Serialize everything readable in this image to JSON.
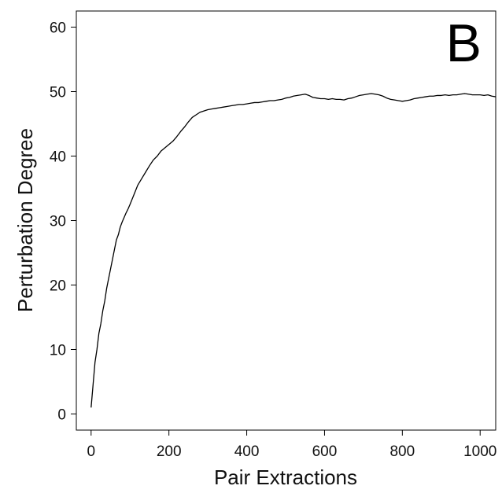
{
  "chart_data": {
    "type": "line",
    "panel_label": "B",
    "xlabel": "Pair Extractions",
    "ylabel": "Perturbation Degree",
    "xlim": [
      -38,
      1040
    ],
    "ylim": [
      -2.5,
      62.5
    ],
    "x_ticks": [
      0,
      200,
      400,
      600,
      800,
      1000
    ],
    "y_ticks": [
      0,
      10,
      20,
      30,
      40,
      50,
      60
    ],
    "grid": false,
    "legend": "none",
    "line_color": "#000000",
    "series": [
      {
        "x": [
          0,
          5,
          10,
          15,
          20,
          25,
          30,
          35,
          40,
          45,
          50,
          55,
          60,
          65,
          70,
          75,
          80,
          85,
          90,
          95,
          100,
          110,
          120,
          130,
          140,
          150,
          160,
          170,
          180,
          190,
          200,
          210,
          220,
          230,
          240,
          250,
          260,
          270,
          280,
          290,
          300,
          310,
          320,
          330,
          340,
          350,
          360,
          370,
          380,
          390,
          400,
          410,
          420,
          430,
          440,
          450,
          460,
          470,
          480,
          490,
          500,
          510,
          520,
          530,
          540,
          550,
          560,
          570,
          580,
          590,
          600,
          610,
          620,
          630,
          640,
          650,
          660,
          670,
          680,
          690,
          700,
          710,
          720,
          730,
          740,
          750,
          760,
          770,
          780,
          790,
          800,
          810,
          820,
          830,
          840,
          850,
          860,
          870,
          880,
          890,
          900,
          910,
          920,
          930,
          940,
          950,
          960,
          970,
          980,
          990,
          1000,
          1010,
          1020,
          1030,
          1040
        ],
        "y": [
          1.0,
          4.5,
          8.0,
          10.0,
          12.5,
          14.0,
          16.0,
          17.5,
          19.5,
          21.0,
          22.5,
          24.0,
          25.5,
          27.0,
          27.8,
          29.0,
          29.8,
          30.5,
          31.2,
          31.8,
          32.5,
          34.0,
          35.5,
          36.5,
          37.5,
          38.5,
          39.4,
          40.0,
          40.8,
          41.3,
          41.8,
          42.3,
          43.0,
          43.8,
          44.5,
          45.3,
          46.0,
          46.4,
          46.8,
          47.0,
          47.2,
          47.3,
          47.4,
          47.5,
          47.6,
          47.7,
          47.8,
          47.9,
          48.0,
          48.0,
          48.1,
          48.2,
          48.3,
          48.3,
          48.4,
          48.5,
          48.6,
          48.6,
          48.7,
          48.8,
          49.0,
          49.1,
          49.3,
          49.4,
          49.5,
          49.6,
          49.4,
          49.1,
          49.0,
          48.9,
          48.9,
          48.8,
          48.9,
          48.8,
          48.8,
          48.7,
          48.9,
          49.0,
          49.2,
          49.4,
          49.5,
          49.6,
          49.7,
          49.6,
          49.5,
          49.3,
          49.0,
          48.8,
          48.7,
          48.6,
          48.5,
          48.6,
          48.7,
          48.9,
          49.0,
          49.1,
          49.2,
          49.3,
          49.3,
          49.4,
          49.4,
          49.5,
          49.4,
          49.5,
          49.5,
          49.6,
          49.7,
          49.6,
          49.5,
          49.5,
          49.5,
          49.4,
          49.5,
          49.3,
          49.2
        ]
      }
    ]
  }
}
